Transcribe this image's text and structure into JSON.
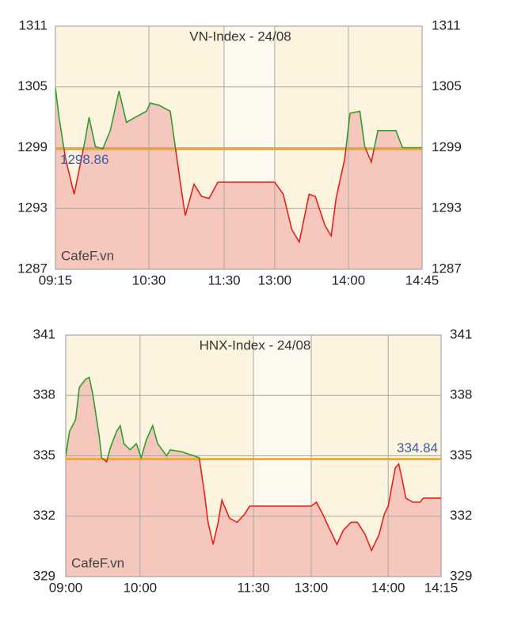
{
  "chart_data": [
    {
      "type": "line",
      "title": "VN-Index - 24/08",
      "watermark": "CafeF.vn",
      "x": [
        "09:15",
        "09:18",
        "09:23",
        "09:30",
        "09:34",
        "09:39",
        "09:42",
        "09:47",
        "09:53",
        "09:59",
        "10:06",
        "10:12",
        "10:19",
        "10:28",
        "10:31",
        "10:38",
        "10:47",
        "10:51",
        "10:55",
        "10:59",
        "11:06",
        "11:12",
        "11:18",
        "11:25",
        "11:30",
        "13:00",
        "13:07",
        "13:14",
        "13:20",
        "13:28",
        "13:33",
        "13:41",
        "13:46",
        "13:50",
        "13:57",
        "14:01",
        "14:07",
        "14:10",
        "14:14",
        "14:18",
        "14:29",
        "14:33",
        "14:45"
      ],
      "values": [
        1304.9,
        1301.9,
        1298,
        1294.4,
        1296.8,
        1299.9,
        1302,
        1299.1,
        1298.9,
        1300.7,
        1304.6,
        1301.5,
        1302,
        1302.6,
        1303.4,
        1303.2,
        1302.6,
        1299.1,
        1295.6,
        1292.3,
        1295.4,
        1294.2,
        1294,
        1295.6,
        1295.6,
        1295.6,
        1294.4,
        1290.9,
        1289.7,
        1294.4,
        1294.2,
        1291.3,
        1290.3,
        1294,
        1297.9,
        1302.4,
        1302.6,
        1299.1,
        1297.6,
        1300.7,
        1300.7,
        1299,
        1299
      ],
      "reference": 1298.86,
      "xticks": [
        "09:15",
        "10:30",
        "11:30",
        "13:00",
        "14:00",
        "14:45"
      ],
      "ylim": [
        1287,
        1311
      ],
      "yticks": [
        1287,
        1293,
        1299,
        1305,
        1311
      ],
      "grid": true,
      "up_color": "#2e9e2e",
      "down_color": "#e8201a",
      "fill_color": "#f5c7bd",
      "reference_color": "#f5a020",
      "reference_label_color": "#3b5ba8"
    },
    {
      "type": "line",
      "title": "HNX-Index - 24/08",
      "watermark": "CafeF.vn",
      "x": [
        "09:00",
        "09:03",
        "09:08",
        "09:11",
        "09:16",
        "09:19",
        "09:22",
        "09:27",
        "09:29",
        "09:33",
        "09:36",
        "09:41",
        "09:44",
        "09:47",
        "09:52",
        "09:57",
        "10:01",
        "10:05",
        "10:10",
        "10:14",
        "10:21",
        "10:24",
        "10:33",
        "10:43",
        "10:47",
        "10:51",
        "10:54",
        "10:58",
        "11:02",
        "11:05",
        "11:11",
        "11:17",
        "11:23",
        "11:27",
        "11:30",
        "13:00",
        "13:04",
        "13:09",
        "13:14",
        "13:20",
        "13:25",
        "13:31",
        "13:36",
        "13:42",
        "13:47",
        "13:53",
        "13:57",
        "14:00",
        "14:02",
        "14:03",
        "14:04",
        "14:05",
        "14:07",
        "14:09",
        "14:10",
        "14:15"
      ],
      "values": [
        335.0,
        336.2,
        336.8,
        338.4,
        338.8,
        338.9,
        338.0,
        336.0,
        334.9,
        334.7,
        335.4,
        336.2,
        336.5,
        335.6,
        335.3,
        335.6,
        334.9,
        335.8,
        336.5,
        335.6,
        335.0,
        335.3,
        335.2,
        335.0,
        334.9,
        333.2,
        331.7,
        330.6,
        331.7,
        332.8,
        331.9,
        331.7,
        332.1,
        332.5,
        332.5,
        332.5,
        332.7,
        332.1,
        331.4,
        330.6,
        331.3,
        331.7,
        331.7,
        331.1,
        330.3,
        331.1,
        332.1,
        332.5,
        334.4,
        334.6,
        333.8,
        332.9,
        332.7,
        332.7,
        332.9,
        332.9
      ],
      "reference": 334.84,
      "xticks": [
        "09:00",
        "10:00",
        "11:30",
        "13:00",
        "14:00",
        "14:15"
      ],
      "ylim": [
        329,
        341
      ],
      "yticks": [
        329,
        332,
        335,
        338,
        341
      ],
      "grid": true,
      "up_color": "#2e9e2e",
      "down_color": "#e8201a",
      "fill_color": "#f5c7bd",
      "reference_color": "#f5a020",
      "reference_label_color": "#3b5ba8"
    }
  ]
}
